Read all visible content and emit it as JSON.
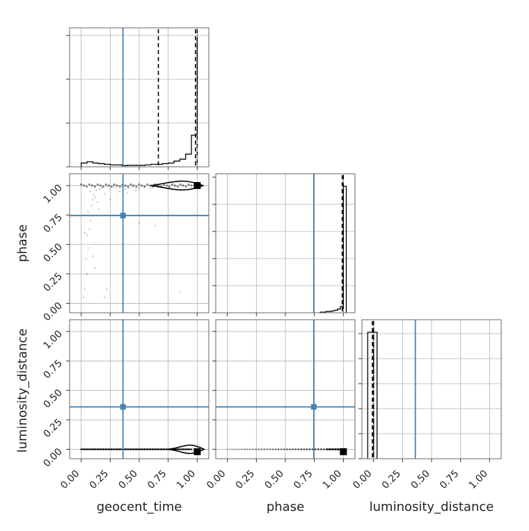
{
  "colors": {
    "truth": "#4682b4",
    "hist": "#000000",
    "grid": "#b0b0b0",
    "scatter": "#000000"
  },
  "chart_data": {
    "type": "corner",
    "parameters": [
      "geocent_time",
      "phase",
      "luminosity_distance"
    ],
    "axis_labels": {
      "geocent_time": "geocent_time",
      "phase": "phase",
      "luminosity_distance": "luminosity_distance"
    },
    "tick_labels": [
      "0.00",
      "0.25",
      "0.50",
      "0.75",
      "1.00"
    ],
    "ticks": [
      0,
      0.25,
      0.5,
      0.75,
      1.0
    ],
    "truths": {
      "geocent_time": 0.36,
      "phase": 0.745,
      "luminosity_distance": 0.36
    },
    "xlim": {
      "geocent_time": [
        -0.1,
        1.1
      ],
      "phase": [
        -0.1,
        1.1
      ],
      "luminosity_distance": [
        -0.1,
        1.1
      ]
    },
    "ylim_2d": {
      "phase": [
        -0.08,
        1.1
      ],
      "luminosity_distance": [
        -0.08,
        1.1
      ]
    },
    "marginals": {
      "geocent_time": {
        "bins": [
          0.0,
          0.05,
          0.1,
          0.15,
          0.2,
          0.25,
          0.3,
          0.35,
          0.4,
          0.45,
          0.5,
          0.55,
          0.6,
          0.65,
          0.7,
          0.75,
          0.8,
          0.85,
          0.9,
          0.95,
          1.0
        ],
        "counts": [
          0.03,
          0.04,
          0.03,
          0.025,
          0.02,
          0.015,
          0.015,
          0.01,
          0.012,
          0.012,
          0.012,
          0.015,
          0.02,
          0.02,
          0.025,
          0.03,
          0.045,
          0.06,
          0.1,
          0.25,
          1.0
        ],
        "quantiles": [
          0.665,
          0.985
        ],
        "median": 1.0
      },
      "phase": {
        "bins": [
          0.8,
          0.825,
          0.85,
          0.875,
          0.9,
          0.925,
          0.95,
          0.975,
          1.0,
          1.025
        ],
        "counts": [
          0.005,
          0.005,
          0.01,
          0.01,
          0.015,
          0.02,
          0.03,
          0.05,
          1.0
        ],
        "quantiles": [
          0.99
        ],
        "median": 1.0
      },
      "luminosity_distance": {
        "bins": [
          -0.05,
          0.03
        ],
        "counts": [
          1.0
        ],
        "quantiles": [
          -0.01,
          0.0
        ],
        "median": 0.0
      }
    },
    "scatter_phase_vs_geocent_time": {
      "points": [
        [
          0.02,
          0.05
        ],
        [
          0.03,
          0.12
        ],
        [
          0.05,
          0.25
        ],
        [
          0.04,
          0.38
        ],
        [
          0.06,
          0.47
        ],
        [
          0.05,
          0.58
        ],
        [
          0.07,
          0.63
        ],
        [
          0.08,
          0.7
        ],
        [
          0.06,
          0.78
        ],
        [
          0.09,
          0.83
        ],
        [
          0.1,
          0.88
        ],
        [
          0.11,
          0.92
        ],
        [
          0.08,
          0.95
        ],
        [
          0.12,
          0.9
        ],
        [
          0.14,
          0.86
        ],
        [
          0.13,
          0.96
        ],
        [
          0.16,
          0.97
        ],
        [
          0.18,
          0.98
        ],
        [
          0.2,
          0.93
        ],
        [
          0.22,
          0.99
        ],
        [
          0.25,
          0.97
        ],
        [
          0.28,
          0.99
        ],
        [
          0.3,
          0.98
        ],
        [
          0.33,
          0.95
        ],
        [
          0.35,
          0.99
        ],
        [
          0.38,
          0.97
        ],
        [
          0.41,
          0.98
        ],
        [
          0.44,
          0.99
        ],
        [
          0.47,
          0.96
        ],
        [
          0.5,
          0.98
        ],
        [
          0.55,
          0.99
        ],
        [
          0.6,
          0.98
        ],
        [
          0.64,
          0.66
        ],
        [
          0.66,
          0.99
        ],
        [
          0.7,
          0.99
        ],
        [
          0.75,
          0.98
        ],
        [
          0.2,
          0.05
        ],
        [
          0.22,
          0.12
        ],
        [
          0.5,
          0.68
        ],
        [
          0.85,
          0.1
        ],
        [
          0.1,
          0.4
        ],
        [
          0.15,
          0.8
        ],
        [
          0.03,
          0.6
        ],
        [
          0.12,
          0.3
        ],
        [
          0.4,
          0.94
        ],
        [
          0.25,
          0.88
        ]
      ],
      "dense_ridge_y": 1.0,
      "dense_ridge_x": [
        0.0,
        0.95
      ],
      "contour_x": [
        0.6,
        1.05
      ],
      "peak": [
        1.0,
        1.0
      ]
    },
    "scatter_luminosity_distance_vs_geocent_time": {
      "ridge_y": 0.0,
      "ridge_x": [
        0.0,
        0.95
      ],
      "contour_x": [
        0.75,
        1.06
      ],
      "peak": [
        1.0,
        -0.02
      ]
    },
    "scatter_luminosity_distance_vs_phase": {
      "ridge_y": 0.0,
      "ridge_x": [
        0.0,
        0.98
      ],
      "peak": [
        1.0,
        -0.02
      ]
    }
  }
}
